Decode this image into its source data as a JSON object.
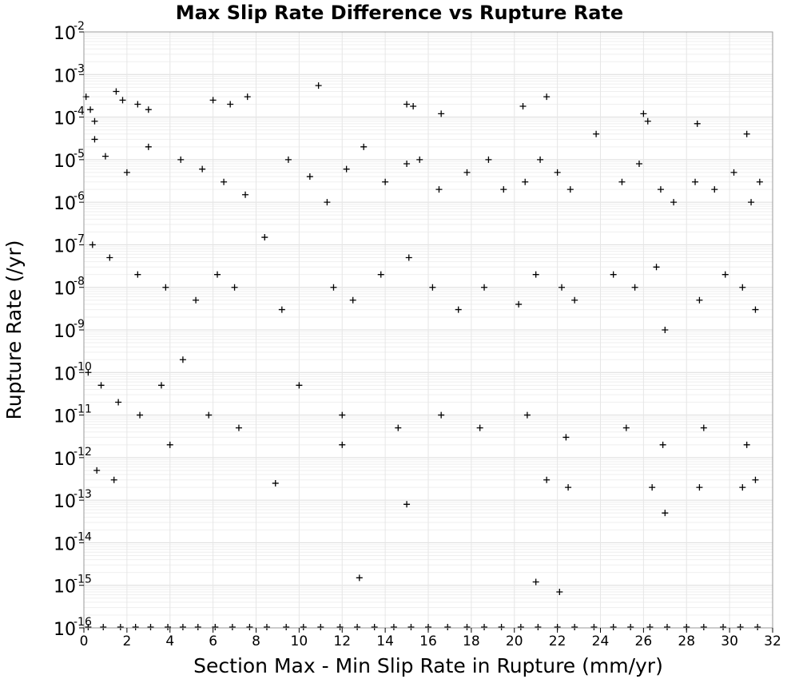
{
  "chart_data": {
    "type": "scatter",
    "title": "Max Slip Rate Difference vs Rupture Rate",
    "xlabel": "Section Max - Min Slip Rate in Rupture (mm/yr)",
    "ylabel": "Rupture Rate (/yr)",
    "xlim": [
      0,
      32
    ],
    "ylim": [
      1e-16,
      0.01
    ],
    "yscale": "log",
    "grid": true,
    "marker": "plus",
    "marker_color": "#000000",
    "x_ticks": [
      0,
      2,
      4,
      6,
      8,
      10,
      12,
      14,
      16,
      18,
      20,
      22,
      24,
      26,
      28,
      30,
      32
    ],
    "x_tick_labels": [
      "0",
      "2",
      "4",
      "6",
      "8",
      "10",
      "12",
      "14",
      "16",
      "18",
      "20",
      "22",
      "24",
      "26",
      "28",
      "30",
      "32"
    ],
    "y_ticks": [
      -2,
      -3,
      -4,
      -5,
      -6,
      -7,
      -8,
      -9,
      -10,
      -11,
      -12,
      -13,
      -14,
      -15,
      -16
    ],
    "y_tick_labels": [
      {
        "base": "10",
        "exp": "-2"
      },
      {
        "base": "10",
        "exp": "-3"
      },
      {
        "base": "10",
        "exp": "-4"
      },
      {
        "base": "10",
        "exp": "-5"
      },
      {
        "base": "10",
        "exp": "-6"
      },
      {
        "base": "10",
        "exp": "-7"
      },
      {
        "base": "10",
        "exp": "-8"
      },
      {
        "base": "10",
        "exp": "-9"
      },
      {
        "base": "10",
        "exp": "-10"
      },
      {
        "base": "10",
        "exp": "-11"
      },
      {
        "base": "10",
        "exp": "-12"
      },
      {
        "base": "10",
        "exp": "-13"
      },
      {
        "base": "10",
        "exp": "-14"
      },
      {
        "base": "10",
        "exp": "-15"
      },
      {
        "base": "10",
        "exp": "-16"
      }
    ],
    "series": [
      {
        "points": [
          [
            0.1,
            0.0003
          ],
          [
            0.3,
            0.00015
          ],
          [
            0.5,
            8e-05
          ],
          [
            1.5,
            0.0004
          ],
          [
            1.8,
            0.00025
          ],
          [
            2.5,
            0.0002
          ],
          [
            3.0,
            0.00015
          ],
          [
            6.0,
            0.00025
          ],
          [
            6.8,
            0.0002
          ],
          [
            7.6,
            0.0003
          ],
          [
            10.9,
            0.00055
          ],
          [
            15.0,
            0.0002
          ],
          [
            15.3,
            0.00018
          ],
          [
            16.6,
            0.00012
          ],
          [
            20.4,
            0.00018
          ],
          [
            21.5,
            0.0003
          ],
          [
            26.0,
            0.00012
          ],
          [
            26.2,
            8e-05
          ],
          [
            28.5,
            7e-05
          ],
          [
            30.8,
            4e-05
          ],
          [
            0.5,
            3e-05
          ],
          [
            1.0,
            1.2e-05
          ],
          [
            2.0,
            5e-06
          ],
          [
            3.0,
            2e-05
          ],
          [
            4.5,
            1e-05
          ],
          [
            5.5,
            6e-06
          ],
          [
            6.5,
            3e-06
          ],
          [
            7.5,
            1.5e-06
          ],
          [
            9.5,
            1e-05
          ],
          [
            10.5,
            4e-06
          ],
          [
            11.3,
            1e-06
          ],
          [
            12.2,
            6e-06
          ],
          [
            13.0,
            2e-05
          ],
          [
            14.0,
            3e-06
          ],
          [
            15.0,
            8e-06
          ],
          [
            15.6,
            1e-05
          ],
          [
            16.5,
            2e-06
          ],
          [
            17.8,
            5e-06
          ],
          [
            18.8,
            1e-05
          ],
          [
            19.5,
            2e-06
          ],
          [
            20.5,
            3e-06
          ],
          [
            21.2,
            1e-05
          ],
          [
            22.0,
            5e-06
          ],
          [
            22.6,
            2e-06
          ],
          [
            23.8,
            4e-05
          ],
          [
            25.0,
            3e-06
          ],
          [
            25.8,
            8e-06
          ],
          [
            26.8,
            2e-06
          ],
          [
            27.4,
            1e-06
          ],
          [
            28.4,
            3e-06
          ],
          [
            29.3,
            2e-06
          ],
          [
            30.2,
            5e-06
          ],
          [
            31.0,
            1e-06
          ],
          [
            31.4,
            3e-06
          ],
          [
            0.4,
            1e-07
          ],
          [
            1.2,
            5e-08
          ],
          [
            2.5,
            2e-08
          ],
          [
            3.8,
            1e-08
          ],
          [
            5.2,
            5e-09
          ],
          [
            6.2,
            2e-08
          ],
          [
            7.0,
            1e-08
          ],
          [
            8.4,
            1.5e-07
          ],
          [
            9.2,
            3e-09
          ],
          [
            11.6,
            1e-08
          ],
          [
            12.5,
            5e-09
          ],
          [
            13.8,
            2e-08
          ],
          [
            15.1,
            5e-08
          ],
          [
            16.2,
            1e-08
          ],
          [
            17.4,
            3e-09
          ],
          [
            18.6,
            1e-08
          ],
          [
            20.2,
            4e-09
          ],
          [
            21.0,
            2e-08
          ],
          [
            22.2,
            1e-08
          ],
          [
            22.8,
            5e-09
          ],
          [
            24.6,
            2e-08
          ],
          [
            25.6,
            1e-08
          ],
          [
            26.6,
            3e-08
          ],
          [
            27.0,
            1e-09
          ],
          [
            28.6,
            5e-09
          ],
          [
            29.8,
            2e-08
          ],
          [
            30.6,
            1e-08
          ],
          [
            31.2,
            3e-09
          ],
          [
            0.2,
            1e-10
          ],
          [
            0.8,
            5e-11
          ],
          [
            1.6,
            2e-11
          ],
          [
            2.6,
            1e-11
          ],
          [
            3.6,
            5e-11
          ],
          [
            4.6,
            2e-10
          ],
          [
            5.8,
            1e-11
          ],
          [
            7.2,
            5e-12
          ],
          [
            10.0,
            5e-11
          ],
          [
            12.0,
            1e-11
          ],
          [
            14.6,
            5e-12
          ],
          [
            16.6,
            1e-11
          ],
          [
            18.4,
            5e-12
          ],
          [
            20.6,
            1e-11
          ],
          [
            22.4,
            3e-12
          ],
          [
            25.2,
            5e-12
          ],
          [
            26.9,
            2e-12
          ],
          [
            28.8,
            5e-12
          ],
          [
            30.8,
            2e-12
          ],
          [
            0.6,
            5e-13
          ],
          [
            1.4,
            3e-13
          ],
          [
            4.0,
            2e-12
          ],
          [
            8.9,
            2.5e-13
          ],
          [
            12.0,
            2e-12
          ],
          [
            15.0,
            8e-14
          ],
          [
            21.5,
            3e-13
          ],
          [
            22.5,
            2e-13
          ],
          [
            26.4,
            2e-13
          ],
          [
            27.0,
            5e-14
          ],
          [
            28.6,
            2e-13
          ],
          [
            30.6,
            2e-13
          ],
          [
            31.2,
            3e-13
          ],
          [
            12.8,
            1.5e-15
          ],
          [
            21.0,
            1.2e-15
          ],
          [
            22.1,
            7e-16
          ]
        ],
        "zero_rate_floor_x": [
          0.2,
          0.9,
          1.7,
          2.4,
          3.1,
          3.9,
          4.6,
          5.3,
          6.1,
          6.9,
          7.7,
          8.5,
          9.4,
          10.2,
          11.0,
          11.9,
          12.7,
          13.5,
          14.4,
          15.2,
          16.0,
          16.9,
          17.8,
          18.6,
          19.4,
          20.3,
          21.1,
          22.0,
          22.8,
          23.7,
          24.6,
          25.4,
          26.3,
          27.1,
          28.0,
          28.8,
          29.7,
          30.5,
          31.3
        ]
      }
    ]
  }
}
